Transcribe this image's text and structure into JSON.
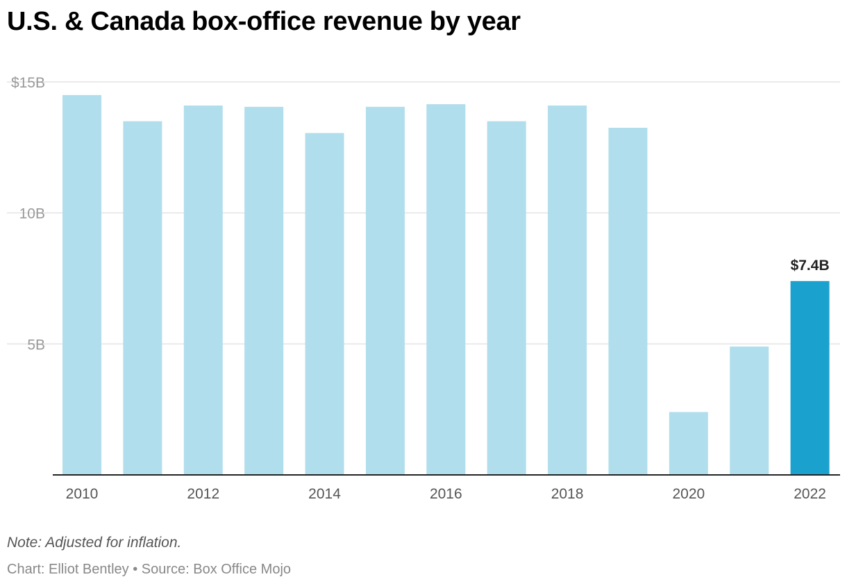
{
  "chart_data": {
    "type": "bar",
    "title": "U.S. & Canada box-office revenue by year",
    "xlabel": "",
    "ylabel": "",
    "ylim": [
      0,
      15
    ],
    "y_unit": "billion USD",
    "y_ticks": [
      {
        "value": 15,
        "label": "$15B"
      },
      {
        "value": 10,
        "label": "10B"
      },
      {
        "value": 5,
        "label": "5B"
      }
    ],
    "categories": [
      "2010",
      "2011",
      "2012",
      "2013",
      "2014",
      "2015",
      "2016",
      "2017",
      "2018",
      "2019",
      "2020",
      "2021",
      "2022"
    ],
    "x_tick_labels": [
      "2010",
      "2012",
      "2014",
      "2016",
      "2018",
      "2020",
      "2022"
    ],
    "values": [
      14.5,
      13.5,
      14.1,
      14.05,
      13.05,
      14.05,
      14.15,
      13.5,
      14.1,
      13.25,
      2.4,
      4.9,
      7.4
    ],
    "highlight_index": 12,
    "highlight_label": "$7.4B",
    "grid": true,
    "legend": "none"
  },
  "colors": {
    "bar": "#b0deec",
    "highlight": "#1ba1cd",
    "grid": "#e3e3e3",
    "axis": "#222222"
  },
  "footer": {
    "note": "Note: Adjusted for inflation.",
    "credit": "Chart: Elliot Bentley • Source: Box Office Mojo"
  }
}
